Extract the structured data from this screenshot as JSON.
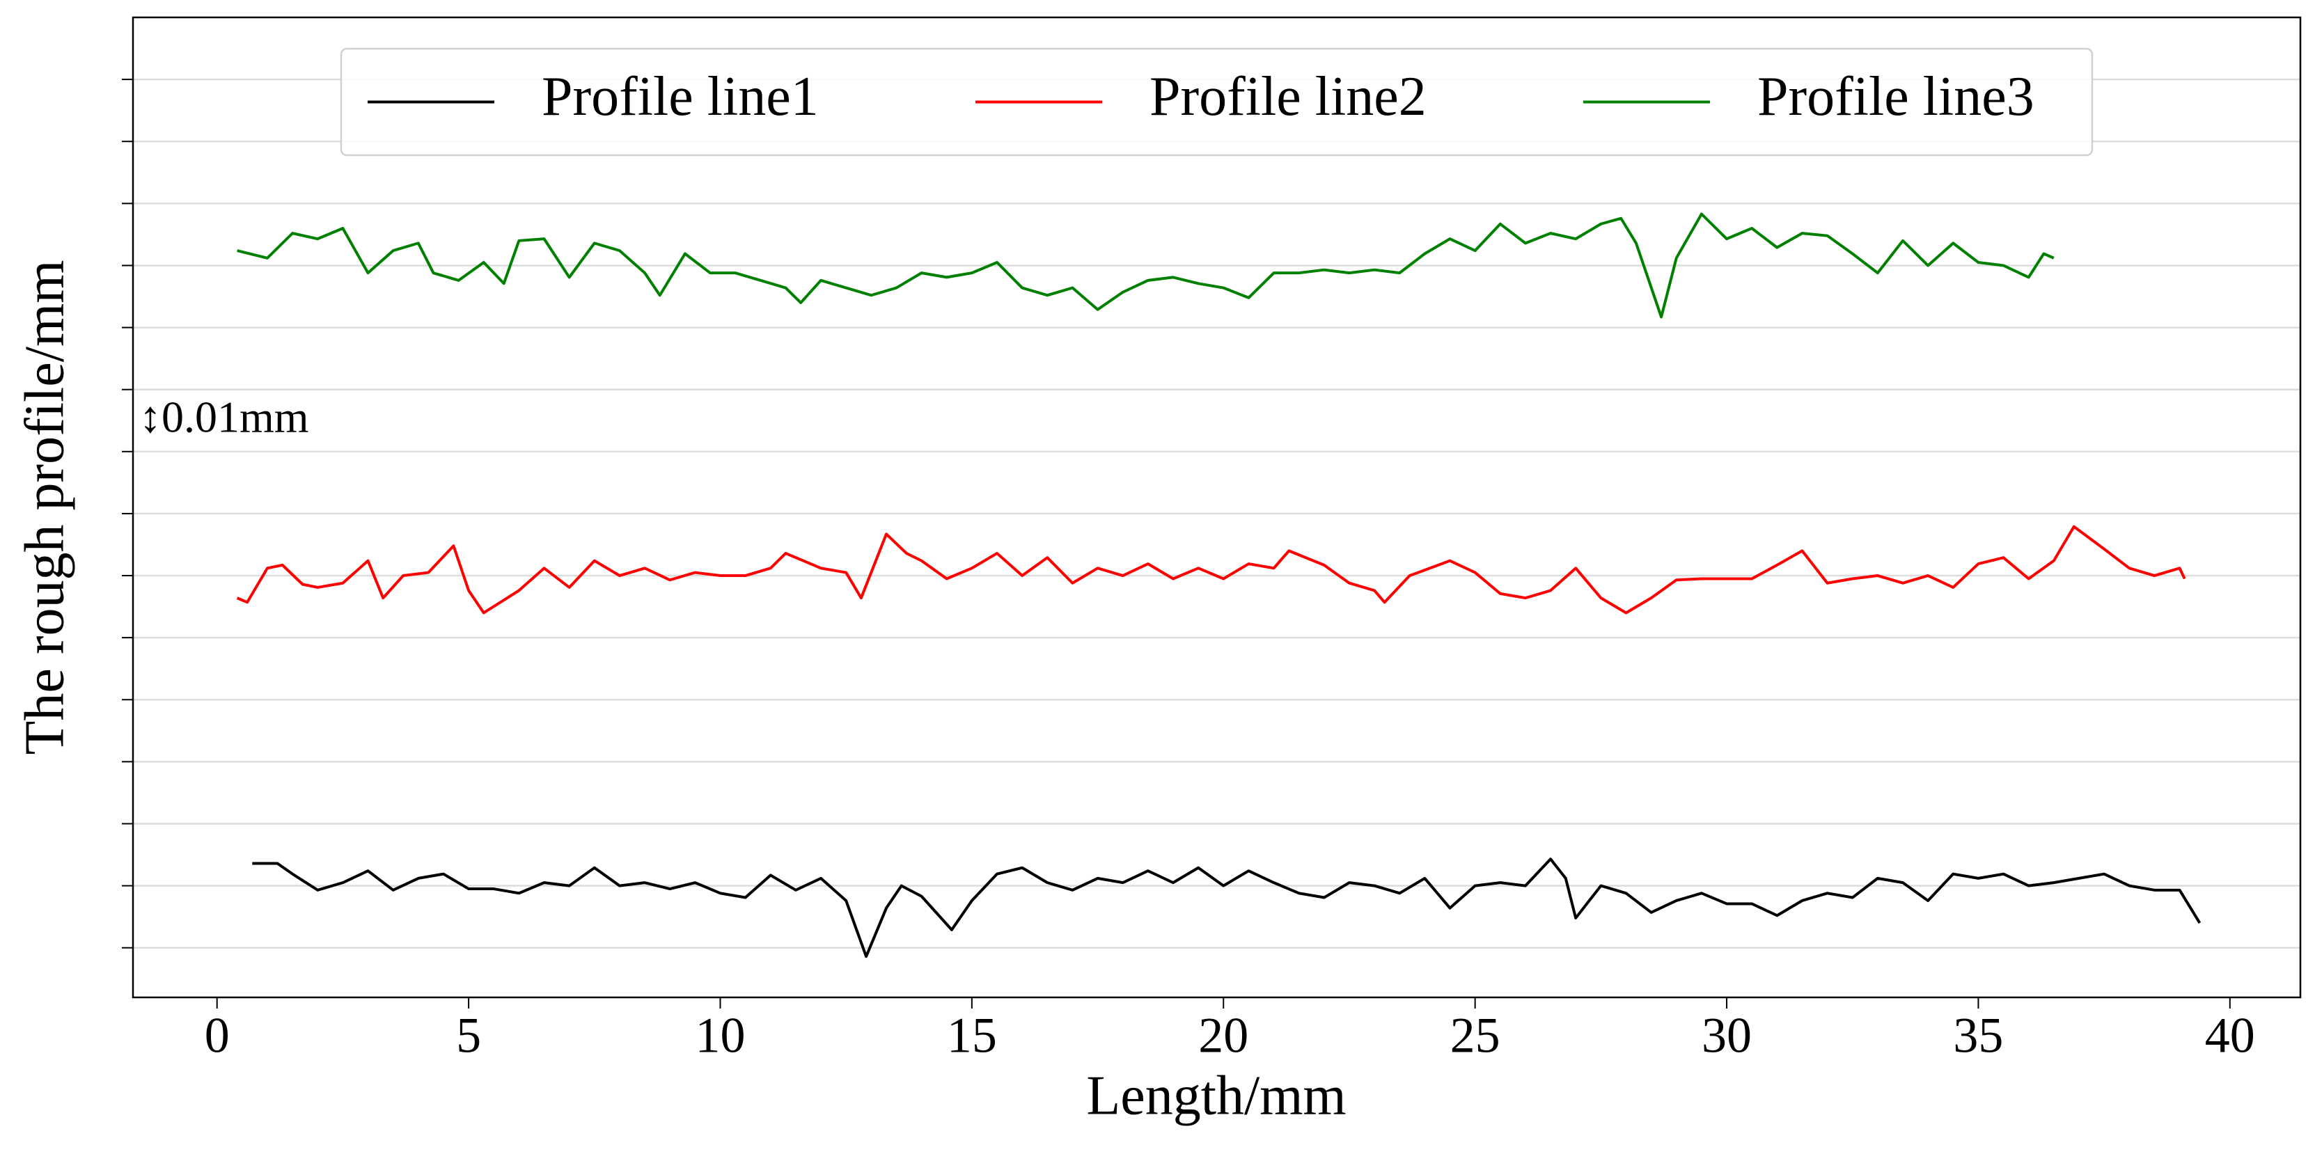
{
  "chart_data": {
    "type": "line",
    "xlabel": "Length/mm",
    "ylabel": "The rough profile/mm",
    "annotation": "↕0.01mm",
    "xlim": [
      -1.67,
      41.4
    ],
    "xticks": [
      0,
      5,
      10,
      15,
      20,
      25,
      30,
      35,
      40
    ],
    "ylim": [
      -0.008,
      0.15
    ],
    "yticks": [
      0,
      0.01,
      0.02,
      0.03,
      0.04,
      0.05,
      0.06,
      0.07,
      0.08,
      0.09,
      0.1,
      0.11,
      0.12,
      0.13,
      0.14
    ],
    "ytick_labels": false,
    "grid": "y",
    "legend": "upper center",
    "series": [
      {
        "name": "Profile line1",
        "color": "#000000",
        "x": [
          0.7,
          1.2,
          1.5,
          2,
          2.5,
          3,
          3.5,
          4,
          4.5,
          5,
          5.5,
          6,
          6.5,
          7,
          7.5,
          8,
          8.5,
          9,
          9.5,
          10,
          10.5,
          11,
          11.5,
          12,
          12.5,
          12.9,
          13.3,
          13.6,
          14,
          14.6,
          15,
          15.5,
          16,
          16.5,
          17,
          17.5,
          18,
          18.5,
          19,
          19.5,
          20,
          20.5,
          21,
          21.5,
          22,
          22.5,
          23,
          23.5,
          24,
          24.5,
          25,
          25.5,
          26,
          26.5,
          26.8,
          27,
          27.5,
          28,
          28.5,
          29,
          29.5,
          30,
          30.5,
          31,
          31.5,
          32,
          32.5,
          33,
          33.5,
          34,
          34.5,
          35,
          35.5,
          36,
          36.5,
          37,
          37.5,
          38,
          38.5,
          39,
          39.4
        ],
        "values": [
          0.0136,
          0.0136,
          0.0119,
          0.0093,
          0.0105,
          0.0124,
          0.0093,
          0.0112,
          0.0119,
          0.0095,
          0.0095,
          0.0088,
          0.0105,
          0.01,
          0.0129,
          0.01,
          0.0105,
          0.0095,
          0.0105,
          0.0088,
          0.0081,
          0.0117,
          0.0093,
          0.0112,
          0.0076,
          -0.0014,
          0.0064,
          0.01,
          0.0083,
          0.0029,
          0.0076,
          0.0119,
          0.0129,
          0.0105,
          0.0093,
          0.0112,
          0.0105,
          0.0124,
          0.0105,
          0.0129,
          0.01,
          0.0124,
          0.0105,
          0.0088,
          0.0081,
          0.0105,
          0.01,
          0.0088,
          0.0112,
          0.0064,
          0.01,
          0.0105,
          0.01,
          0.0143,
          0.0112,
          0.0048,
          0.01,
          0.0088,
          0.0057,
          0.0076,
          0.0088,
          0.0071,
          0.0071,
          0.0052,
          0.0076,
          0.0088,
          0.0081,
          0.0112,
          0.0105,
          0.0076,
          0.0119,
          0.0112,
          0.0119,
          0.01,
          0.0105,
          0.0112,
          0.0119,
          0.01,
          0.0093,
          0.0093,
          0.004
        ]
      },
      {
        "name": "Profile line2",
        "color": "#ff0000",
        "x": [
          0.4,
          0.6,
          1,
          1.3,
          1.7,
          2,
          2.5,
          3,
          3.3,
          3.7,
          4.2,
          4.7,
          5,
          5.3,
          6,
          6.5,
          7,
          7.5,
          8,
          8.5,
          9,
          9.5,
          10,
          10.5,
          11,
          11.3,
          12,
          12.5,
          12.8,
          13.3,
          13.7,
          14,
          14.5,
          15,
          15.5,
          16,
          16.5,
          17,
          17.5,
          18,
          18.5,
          19,
          19.5,
          20,
          20.5,
          21,
          21.3,
          22,
          22.5,
          23,
          23.2,
          23.7,
          24.5,
          25,
          25.5,
          26,
          26.5,
          27,
          27.5,
          28,
          28.5,
          29,
          29.5,
          30,
          30.5,
          31,
          31.5,
          32,
          32.5,
          33,
          33.5,
          34,
          34.5,
          35,
          35.5,
          36,
          36.5,
          36.9,
          37.5,
          38,
          38.5,
          39,
          39.1
        ],
        "values": [
          0.0564,
          0.0557,
          0.0612,
          0.0617,
          0.0586,
          0.0581,
          0.0588,
          0.0624,
          0.0564,
          0.06,
          0.0605,
          0.0648,
          0.0576,
          0.054,
          0.0576,
          0.0612,
          0.0581,
          0.0624,
          0.06,
          0.0612,
          0.0593,
          0.0605,
          0.06,
          0.06,
          0.0612,
          0.0636,
          0.0612,
          0.0605,
          0.0564,
          0.0667,
          0.0636,
          0.0624,
          0.0595,
          0.0612,
          0.0636,
          0.06,
          0.0629,
          0.0588,
          0.0612,
          0.06,
          0.0619,
          0.0595,
          0.0612,
          0.0595,
          0.0619,
          0.0612,
          0.064,
          0.0617,
          0.0588,
          0.0576,
          0.0557,
          0.06,
          0.0624,
          0.0605,
          0.0571,
          0.0564,
          0.0576,
          0.0612,
          0.0564,
          0.054,
          0.0564,
          0.0593,
          0.0595,
          0.0595,
          0.0595,
          0.0617,
          0.064,
          0.0588,
          0.0595,
          0.06,
          0.0588,
          0.06,
          0.0581,
          0.0619,
          0.0629,
          0.0595,
          0.0624,
          0.0679,
          0.0643,
          0.0612,
          0.06,
          0.0612,
          0.0595
        ]
      },
      {
        "name": "Profile line3",
        "color": "#008000",
        "x": [
          0.4,
          1,
          1.5,
          2,
          2.5,
          3,
          3.5,
          4,
          4.3,
          4.8,
          5.3,
          5.7,
          6,
          6.5,
          7,
          7.5,
          8,
          8.5,
          8.8,
          9.3,
          9.8,
          10.3,
          10.8,
          11.3,
          11.6,
          12,
          12.5,
          13,
          13.5,
          14,
          14.5,
          15,
          15.5,
          16,
          16.5,
          17,
          17.5,
          18,
          18.5,
          19,
          19.5,
          20,
          20.5,
          21,
          21.5,
          22,
          22.5,
          23,
          23.5,
          24,
          24.5,
          25,
          25.5,
          26,
          26.5,
          27,
          27.5,
          27.9,
          28.2,
          28.7,
          29,
          29.5,
          30,
          30.5,
          31,
          31.5,
          32,
          32.5,
          33,
          33.5,
          34,
          34.5,
          35,
          35.5,
          36,
          36.3,
          36.5
        ],
        "values": [
          0.1124,
          0.1112,
          0.1152,
          0.1143,
          0.116,
          0.1088,
          0.1124,
          0.1136,
          0.1088,
          0.1076,
          0.1105,
          0.1071,
          0.114,
          0.1143,
          0.1081,
          0.1136,
          0.1124,
          0.1088,
          0.1052,
          0.1119,
          0.1088,
          0.1088,
          0.1076,
          0.1064,
          0.104,
          0.1076,
          0.1064,
          0.1052,
          0.1064,
          0.1088,
          0.1081,
          0.1088,
          0.1105,
          0.1064,
          0.1052,
          0.1064,
          0.1029,
          0.1057,
          0.1076,
          0.1081,
          0.1071,
          0.1064,
          0.1048,
          0.1088,
          0.1088,
          0.1093,
          0.1088,
          0.1093,
          0.1088,
          0.1119,
          0.1143,
          0.1124,
          0.1167,
          0.1136,
          0.1152,
          0.1143,
          0.1167,
          0.1176,
          0.1136,
          0.1017,
          0.1112,
          0.1183,
          0.1143,
          0.116,
          0.1129,
          0.1152,
          0.1148,
          0.1119,
          0.1088,
          0.114,
          0.11,
          0.1136,
          0.1105,
          0.11,
          0.1081,
          0.1119,
          0.1112
        ]
      }
    ]
  }
}
